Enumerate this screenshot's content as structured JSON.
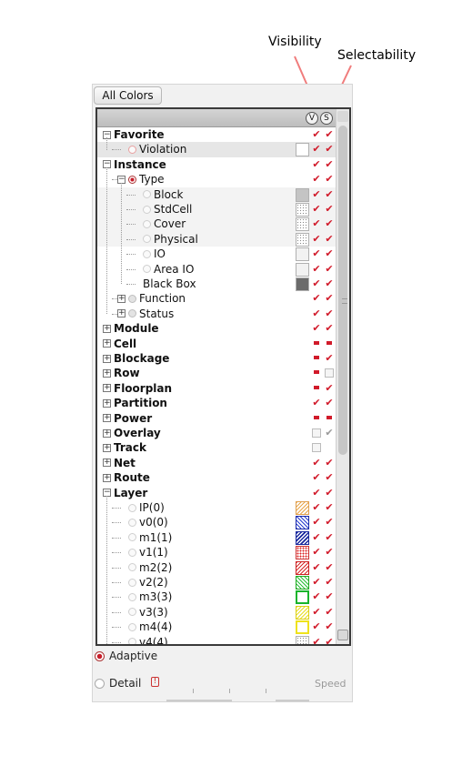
{
  "annotations": {
    "visibility": "Visibility",
    "selectability": "Selectability"
  },
  "toolbar": {
    "all_colors_label": "All Colors"
  },
  "header": {
    "visibility_button": "V",
    "selectability_button": "S"
  },
  "colors": {
    "check": "#d11a2a",
    "annotation_arrow": "#f07c7c",
    "panel_bg": "#f1f1f1"
  },
  "tree": [
    {
      "label": "Favorite",
      "level": 0,
      "bold": true,
      "expander": "minus",
      "vis": "check",
      "sel": "check"
    },
    {
      "label": "Violation",
      "level": 1,
      "radio": "pink",
      "swatch": "#ffffff",
      "vis": "check",
      "sel": "check",
      "selected": true
    },
    {
      "label": "Instance",
      "level": 0,
      "bold": true,
      "expander": "minus",
      "vis": "check",
      "sel": "check"
    },
    {
      "label": "Type",
      "level": 1,
      "expander": "minus",
      "radio": "on",
      "vis": "check",
      "sel": "check"
    },
    {
      "label": "Block",
      "level": 2,
      "radio": "plain",
      "swatch": "#c4c4c4",
      "vis": "check",
      "sel": "check",
      "shade": true
    },
    {
      "label": "StdCell",
      "level": 2,
      "radio": "plain",
      "swatch": "dots",
      "vis": "check",
      "sel": "check",
      "shade": true
    },
    {
      "label": "Cover",
      "level": 2,
      "radio": "plain",
      "swatch": "dots",
      "vis": "check",
      "sel": "check",
      "shade": true
    },
    {
      "label": "Physical",
      "level": 2,
      "radio": "plain",
      "swatch": "dots",
      "vis": "check",
      "sel": "check",
      "shade": true
    },
    {
      "label": "IO",
      "level": 2,
      "radio": "plain",
      "swatch": "#f2f2f2",
      "vis": "check",
      "sel": "check"
    },
    {
      "label": "Area IO",
      "level": 2,
      "radio": "plain",
      "swatch": "#f2f2f2",
      "vis": "check",
      "sel": "check"
    },
    {
      "label": "Black Box",
      "level": 2,
      "swatch": "#6b6b6b",
      "vis": "check",
      "sel": "check"
    },
    {
      "label": "Function",
      "level": 1,
      "expander": "plus",
      "radio": "grey",
      "vis": "check",
      "sel": "check"
    },
    {
      "label": "Status",
      "level": 1,
      "expander": "plus",
      "radio": "grey",
      "vis": "check",
      "sel": "check"
    },
    {
      "label": "Module",
      "level": 0,
      "bold": true,
      "expander": "plus",
      "vis": "check",
      "sel": "check"
    },
    {
      "label": "Cell",
      "level": 0,
      "bold": true,
      "expander": "plus",
      "vis": "partial",
      "sel": "partial"
    },
    {
      "label": "Blockage",
      "level": 0,
      "bold": true,
      "expander": "plus",
      "vis": "partial",
      "sel": "check"
    },
    {
      "label": "Row",
      "level": 0,
      "bold": true,
      "expander": "plus",
      "vis": "partial",
      "sel": "empty"
    },
    {
      "label": "Floorplan",
      "level": 0,
      "bold": true,
      "expander": "plus",
      "vis": "partial",
      "sel": "check"
    },
    {
      "label": "Partition",
      "level": 0,
      "bold": true,
      "expander": "plus",
      "vis": "check",
      "sel": "check"
    },
    {
      "label": "Power",
      "level": 0,
      "bold": true,
      "expander": "plus",
      "vis": "partial",
      "sel": "partial"
    },
    {
      "label": "Overlay",
      "level": 0,
      "bold": true,
      "expander": "plus",
      "vis": "empty",
      "sel": "grey"
    },
    {
      "label": "Track",
      "level": 0,
      "bold": true,
      "expander": "plus",
      "vis": "empty",
      "sel": "none"
    },
    {
      "label": "Net",
      "level": 0,
      "bold": true,
      "expander": "plus",
      "vis": "check",
      "sel": "check"
    },
    {
      "label": "Route",
      "level": 0,
      "bold": true,
      "expander": "plus",
      "vis": "check",
      "sel": "check"
    },
    {
      "label": "Layer",
      "level": 0,
      "bold": true,
      "expander": "minus",
      "vis": "check",
      "sel": "check"
    },
    {
      "label": "IP(0)",
      "level": 1,
      "radio": "plain",
      "swatch": "hatch-orange",
      "vis": "check",
      "sel": "check"
    },
    {
      "label": "v0(0)",
      "level": 1,
      "radio": "plain",
      "swatch": "hatch-blue",
      "vis": "check",
      "sel": "check"
    },
    {
      "label": "m1(1)",
      "level": 1,
      "radio": "plain",
      "swatch": "hatch-navy",
      "vis": "check",
      "sel": "check"
    },
    {
      "label": "v1(1)",
      "level": 1,
      "radio": "plain",
      "swatch": "dots-red",
      "vis": "check",
      "sel": "check"
    },
    {
      "label": "m2(2)",
      "level": 1,
      "radio": "plain",
      "swatch": "hatch-red",
      "vis": "check",
      "sel": "check"
    },
    {
      "label": "v2(2)",
      "level": 1,
      "radio": "plain",
      "swatch": "hatch-green",
      "vis": "check",
      "sel": "check"
    },
    {
      "label": "m3(3)",
      "level": 1,
      "radio": "plain",
      "swatch": "green-box",
      "vis": "check",
      "sel": "check"
    },
    {
      "label": "v3(3)",
      "level": 1,
      "radio": "plain",
      "swatch": "hatch-yellow",
      "vis": "check",
      "sel": "check"
    },
    {
      "label": "m4(4)",
      "level": 1,
      "radio": "plain",
      "swatch": "yellow-box",
      "vis": "check",
      "sel": "check"
    },
    {
      "label": "v4(4)",
      "level": 1,
      "radio": "plain",
      "swatch": "dots",
      "vis": "check",
      "sel": "check"
    }
  ],
  "bottom": {
    "adaptive_label": "Adaptive",
    "detail_label": "Detail",
    "speed_label": "Speed"
  }
}
